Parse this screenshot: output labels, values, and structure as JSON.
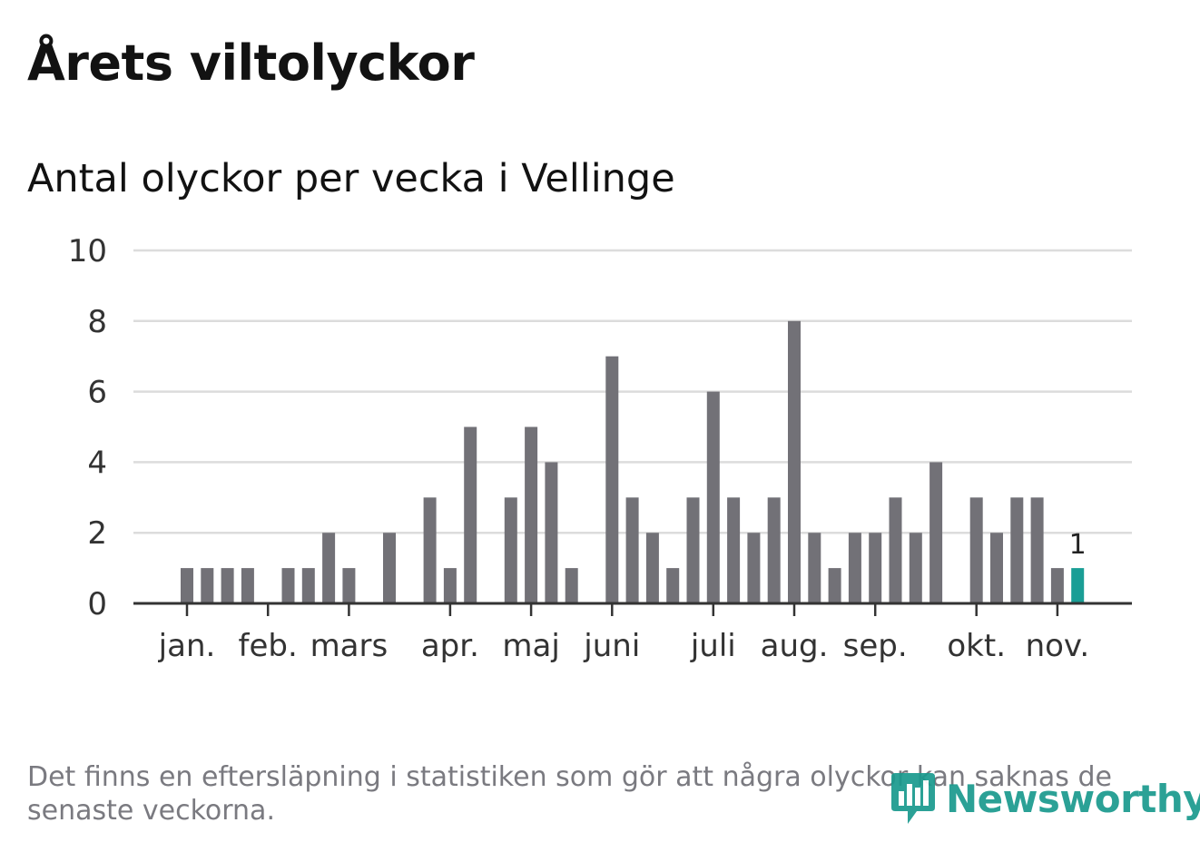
{
  "header": {
    "title": "Årets viltolyckor",
    "subtitle": "Antal olyckor per vecka i Vellinge"
  },
  "footnote": "Det finns en eftersläpning i statistiken som gör att några olyckor kan saknas de senaste veckorna.",
  "logo": {
    "text": "Newsworthy",
    "icon": "bar-chart-speech-bubble-icon"
  },
  "colors": {
    "bar": "#727177",
    "highlight": "#1a9e96",
    "grid": "#dcdcdc",
    "axis": "#333333",
    "text": "#121212",
    "muted": "#7a7a80",
    "brand": "#1a9a8e"
  },
  "chart_data": {
    "type": "bar",
    "title": "Antal olyckor per vecka i Vellinge",
    "xlabel": "",
    "ylabel": "",
    "ylim": [
      0,
      10
    ],
    "yticks": [
      0,
      2,
      4,
      6,
      8,
      10
    ],
    "grid": true,
    "x_week_range": [
      1,
      45
    ],
    "weeks": [
      1,
      2,
      3,
      4,
      5,
      6,
      7,
      8,
      9,
      10,
      11,
      12,
      13,
      14,
      15,
      16,
      17,
      18,
      19,
      20,
      21,
      22,
      23,
      24,
      25,
      26,
      27,
      28,
      29,
      30,
      31,
      32,
      33,
      34,
      35,
      36,
      37,
      38,
      39,
      40,
      41,
      42,
      43,
      44,
      45
    ],
    "values": [
      1,
      1,
      1,
      1,
      0,
      1,
      1,
      2,
      1,
      0,
      2,
      0,
      3,
      1,
      5,
      0,
      3,
      5,
      4,
      1,
      0,
      7,
      3,
      2,
      1,
      3,
      6,
      3,
      2,
      3,
      8,
      2,
      1,
      2,
      2,
      3,
      2,
      4,
      0,
      3,
      2,
      3,
      3,
      1,
      1
    ],
    "highlight_last": true,
    "last_value_label": "1",
    "month_ticks": [
      {
        "label": "jan.",
        "week": 1
      },
      {
        "label": "feb.",
        "week": 5
      },
      {
        "label": "mars",
        "week": 9
      },
      {
        "label": "apr.",
        "week": 14
      },
      {
        "label": "maj",
        "week": 18
      },
      {
        "label": "juni",
        "week": 22
      },
      {
        "label": "juli",
        "week": 27
      },
      {
        "label": "aug.",
        "week": 31
      },
      {
        "label": "sep.",
        "week": 35
      },
      {
        "label": "okt.",
        "week": 40
      },
      {
        "label": "nov.",
        "week": 44
      }
    ]
  }
}
